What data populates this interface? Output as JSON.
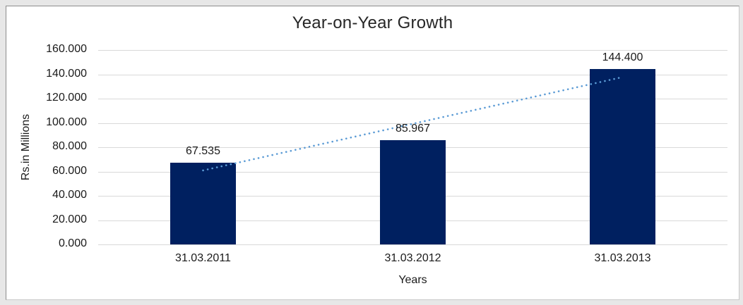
{
  "chart_data": {
    "type": "bar",
    "title": "Year-on-Year Growth",
    "categories": [
      "31.03.2011",
      "31.03.2012",
      "31.03.2013"
    ],
    "values": [
      67.535,
      85.967,
      144.4
    ],
    "data_labels": [
      "67.535",
      "85.967",
      "144.400"
    ],
    "xlabel": "Years",
    "ylabel": "Rs.in Millions",
    "ylim": [
      0,
      160
    ],
    "ytick_step": 20,
    "ytick_labels": [
      "0.000",
      "20.000",
      "40.000",
      "60.000",
      "80.000",
      "100.000",
      "120.000",
      "140.000",
      "160.000"
    ],
    "grid": true,
    "legend": "none",
    "colors": {
      "bar": "#002060",
      "gridline": "#d9d9d9",
      "trendline": "#5b9bd5",
      "text": "#1a1a1a",
      "title_text": "#262626",
      "plot_background": "#ffffff"
    },
    "trendline": {
      "type": "linear",
      "line_style": "dotted",
      "start_value": 60.9,
      "end_value": 137.7
    }
  }
}
